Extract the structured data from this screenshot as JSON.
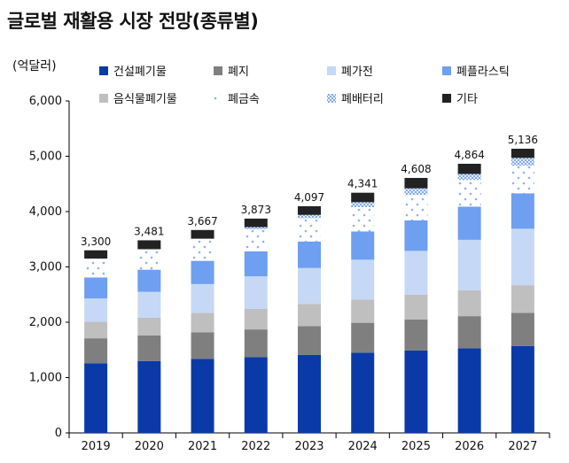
{
  "chart_data": {
    "type": "bar",
    "stacked": true,
    "title": "글로벌 재활용 시장 전망(종류별)",
    "unit_label": "(억달러)",
    "categories": [
      "2019",
      "2020",
      "2021",
      "2022",
      "2023",
      "2024",
      "2025",
      "2026",
      "2027"
    ],
    "ylim": [
      0,
      6000
    ],
    "yticks": [
      0,
      1000,
      2000,
      3000,
      4000,
      5000,
      6000
    ],
    "ytick_labels": [
      "0",
      "1,000",
      "2,000",
      "3,000",
      "4,000",
      "5,000",
      "6,000"
    ],
    "totals": [
      3300,
      3481,
      3667,
      3873,
      4097,
      4341,
      4608,
      4864,
      5136
    ],
    "total_labels": [
      "3,300",
      "3,481",
      "3,667",
      "3,873",
      "4,097",
      "4,341",
      "4,608",
      "4,864",
      "5,136"
    ],
    "grid": false,
    "legend_position": "top",
    "series": [
      {
        "name": "건설폐기물",
        "color": "#0a3aa8",
        "pattern": "solid",
        "values": [
          1260,
          1300,
          1340,
          1370,
          1410,
          1450,
          1490,
          1530,
          1570
        ]
      },
      {
        "name": "폐지",
        "color": "#7f7f7f",
        "pattern": "solid",
        "values": [
          450,
          460,
          480,
          500,
          520,
          540,
          560,
          580,
          600
        ]
      },
      {
        "name": "음식물폐기물",
        "color": "#bfbfbf",
        "pattern": "solid",
        "values": [
          300,
          320,
          350,
          370,
          400,
          420,
          450,
          470,
          500
        ]
      },
      {
        "name": "폐가전",
        "color": "#c5d9f6",
        "pattern": "solid",
        "values": [
          420,
          470,
          520,
          590,
          650,
          720,
          790,
          910,
          1020
        ]
      },
      {
        "name": "폐플라스틱",
        "color": "#6e9ff0",
        "pattern": "solid",
        "values": [
          380,
          400,
          420,
          450,
          480,
          510,
          550,
          600,
          640
        ]
      },
      {
        "name": "폐금속",
        "color": "#ffffff",
        "pattern": "dots",
        "values": [
          340,
          370,
          400,
          400,
          420,
          440,
          460,
          480,
          500
        ]
      },
      {
        "name": "폐배터리",
        "color": "#c5d9f6",
        "pattern": "check",
        "values": [
          0,
          0,
          0,
          40,
          60,
          90,
          120,
          110,
          140
        ]
      },
      {
        "name": "기타",
        "color": "#222222",
        "pattern": "solid",
        "values": [
          150,
          161,
          157,
          153,
          157,
          171,
          188,
          184,
          166
        ]
      }
    ]
  }
}
